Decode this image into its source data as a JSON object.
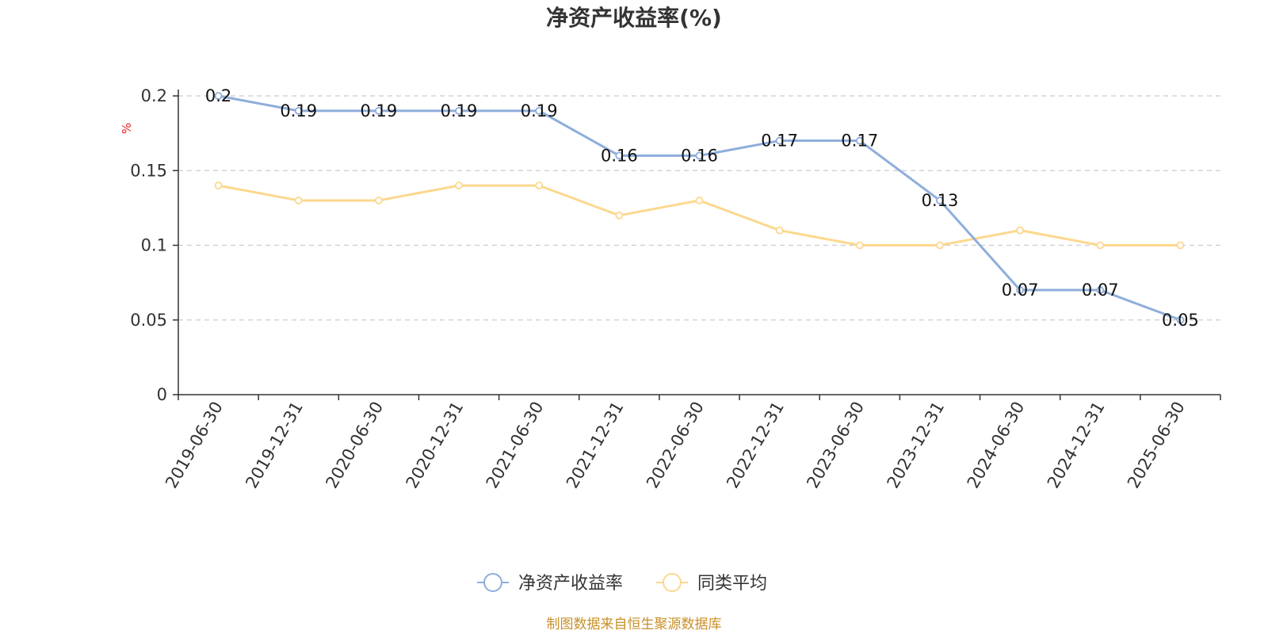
{
  "chart_data": {
    "type": "line",
    "title": "净资产收益率(%)",
    "ylabel": "%",
    "xlabel": "",
    "categories": [
      "2019-06-30",
      "2019-12-31",
      "2020-06-30",
      "2020-12-31",
      "2021-06-30",
      "2021-12-31",
      "2022-06-30",
      "2022-12-31",
      "2023-06-30",
      "2023-12-31",
      "2024-06-30",
      "2024-12-31",
      "2025-06-30"
    ],
    "series": [
      {
        "name": "净资产收益率",
        "values": [
          0.2,
          0.19,
          0.19,
          0.19,
          0.19,
          0.16,
          0.16,
          0.17,
          0.17,
          0.13,
          0.07,
          0.07,
          0.05
        ],
        "color": "#8eaedb",
        "labels": true
      },
      {
        "name": "同类平均",
        "values": [
          0.14,
          0.13,
          0.13,
          0.14,
          0.14,
          0.12,
          0.13,
          0.11,
          0.1,
          0.1,
          0.11,
          0.1,
          0.1
        ],
        "color": "#fcd88e",
        "labels": false
      }
    ],
    "ylim": [
      0,
      0.2
    ],
    "yticks": [
      "0",
      "0.05",
      "0.1",
      "0.15",
      "0.2"
    ],
    "grid": true,
    "legend": "bottom-center"
  },
  "source": "制图数据来自恒生聚源数据库"
}
